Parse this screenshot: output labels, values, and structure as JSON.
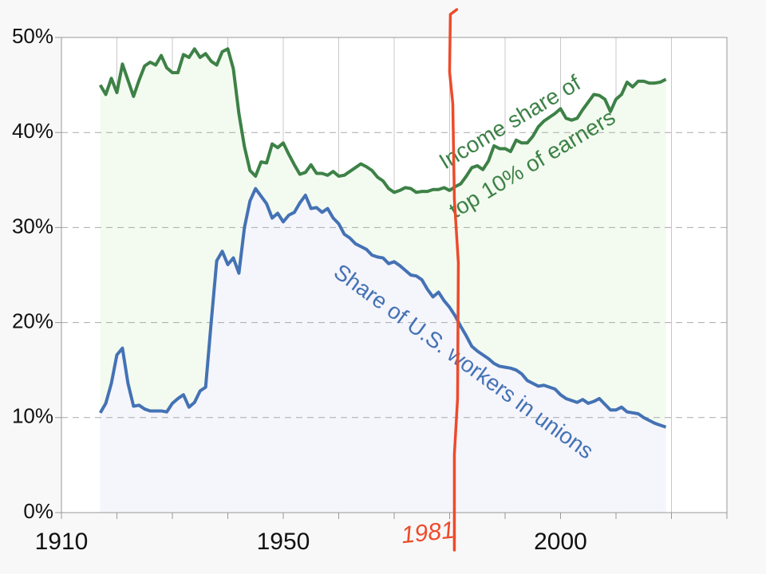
{
  "chart_data": {
    "type": "line",
    "x": [
      1917,
      1918,
      1919,
      1920,
      1921,
      1922,
      1923,
      1924,
      1925,
      1926,
      1927,
      1928,
      1929,
      1930,
      1931,
      1932,
      1933,
      1934,
      1935,
      1936,
      1937,
      1938,
      1939,
      1940,
      1941,
      1942,
      1943,
      1944,
      1945,
      1946,
      1947,
      1948,
      1949,
      1950,
      1951,
      1952,
      1953,
      1954,
      1955,
      1956,
      1957,
      1958,
      1959,
      1960,
      1961,
      1962,
      1963,
      1964,
      1965,
      1966,
      1967,
      1968,
      1969,
      1970,
      1971,
      1972,
      1973,
      1974,
      1975,
      1976,
      1977,
      1978,
      1979,
      1980,
      1981,
      1982,
      1983,
      1984,
      1985,
      1986,
      1987,
      1988,
      1989,
      1990,
      1991,
      1992,
      1993,
      1994,
      1995,
      1996,
      1997,
      1998,
      1999,
      2000,
      2001,
      2002,
      2003,
      2004,
      2005,
      2006,
      2007,
      2008,
      2009,
      2010,
      2011,
      2012,
      2013,
      2014,
      2015,
      2016,
      2017,
      2018,
      2019
    ],
    "series": [
      {
        "name": "Income share of top 10% of earners",
        "color": "#3d8146",
        "fill": "#f3fbf0",
        "values": [
          45,
          44,
          45.7,
          44.2,
          47.2,
          45.5,
          43.8,
          45.5,
          47,
          47.4,
          47.1,
          48.1,
          46.8,
          46.3,
          46.3,
          48.2,
          47.9,
          48.8,
          47.9,
          48.3,
          47.5,
          47.1,
          48.5,
          48.8,
          46.7,
          42,
          38.5,
          36,
          35.4,
          36.9,
          36.8,
          38.8,
          38.4,
          38.9,
          37.7,
          36.6,
          35.6,
          35.8,
          36.6,
          35.7,
          35.7,
          35.5,
          35.9,
          35.4,
          35.5,
          35.9,
          36.3,
          36.7,
          36.4,
          36,
          35.3,
          34.9,
          34.1,
          33.7,
          33.9,
          34.2,
          34.1,
          33.7,
          33.8,
          33.8,
          34,
          34,
          34.2,
          33.9,
          34.3,
          34.6,
          35.4,
          36.3,
          36.5,
          36.1,
          37,
          38.6,
          38.3,
          38.3,
          38,
          39.2,
          38.9,
          38.9,
          39.6,
          40.6,
          41.2,
          41.6,
          42,
          42.5,
          41.5,
          41.3,
          41.5,
          42.4,
          43.2,
          44,
          43.9,
          43.5,
          42.2,
          43.5,
          44,
          45.3,
          44.8,
          45.4,
          45.4,
          45.2,
          45.2,
          45.3,
          45.6
        ]
      },
      {
        "name": "Share of U.S. workers in unions",
        "color": "#4472b4",
        "fill": "#f5f5fc",
        "values": [
          10.5,
          11.5,
          13.6,
          16.6,
          17.3,
          13.6,
          11.2,
          11.3,
          10.9,
          10.7,
          10.7,
          10.7,
          10.6,
          11.5,
          12,
          12.4,
          11.1,
          11.6,
          12.8,
          13.2,
          20,
          26.5,
          27.5,
          26.1,
          26.8,
          25.2,
          30,
          32.8,
          34.1,
          33.3,
          32.5,
          31,
          31.5,
          30.6,
          31.3,
          31.6,
          32.6,
          33.4,
          32,
          32.1,
          31.6,
          32,
          31,
          30.4,
          29.3,
          28.9,
          28.3,
          28,
          27.7,
          27.1,
          26.9,
          26.8,
          26.2,
          26.4,
          26,
          25.5,
          25,
          24.9,
          24.5,
          23.5,
          22.7,
          23.2,
          22.3,
          21.6,
          20.7,
          19.6,
          18.6,
          17.5,
          17,
          16.6,
          16.2,
          15.7,
          15.4,
          15.3,
          15.2,
          15,
          14.6,
          13.9,
          13.6,
          13.3,
          13.4,
          13.2,
          13,
          12.4,
          12,
          11.8,
          11.6,
          11.9,
          11.5,
          11.7,
          12,
          11.4,
          10.8,
          10.8,
          11.1,
          10.6,
          10.5,
          10.4,
          10,
          9.7,
          9.4,
          9.2,
          9
        ]
      }
    ],
    "annotations": [
      "Income share of",
      "top 10% of earners",
      "Share of U.S. workers in unions"
    ],
    "marker": {
      "x": 1981,
      "label": "1981",
      "color": "#ee4a2a"
    },
    "xlim": [
      1910,
      2030
    ],
    "xticks": [
      {
        "value": 1910,
        "label": "1910"
      },
      {
        "value": 1920,
        "label": null
      },
      {
        "value": 1930,
        "label": null
      },
      {
        "value": 1940,
        "label": null
      },
      {
        "value": 1950,
        "label": "1950"
      },
      {
        "value": 1960,
        "label": null
      },
      {
        "value": 1970,
        "label": null
      },
      {
        "value": 1980,
        "label": null
      },
      {
        "value": 1990,
        "label": null
      },
      {
        "value": 2000,
        "label": "2000"
      },
      {
        "value": 2010,
        "label": null
      },
      {
        "value": 2020,
        "label": null
      },
      {
        "value": 2030,
        "label": null
      }
    ],
    "ylim": [
      0,
      50
    ],
    "yticks": [
      {
        "value": 0,
        "label": "0%"
      },
      {
        "value": 10,
        "label": "10%"
      },
      {
        "value": 20,
        "label": "20%"
      },
      {
        "value": 30,
        "label": "30%"
      },
      {
        "value": 40,
        "label": "40%"
      },
      {
        "value": 50,
        "label": "50%"
      }
    ],
    "grid": true
  }
}
